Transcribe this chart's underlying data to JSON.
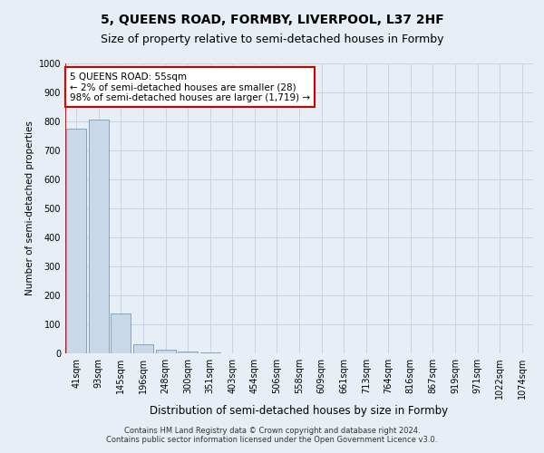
{
  "title": "5, QUEENS ROAD, FORMBY, LIVERPOOL, L37 2HF",
  "subtitle": "Size of property relative to semi-detached houses in Formby",
  "xlabel": "Distribution of semi-detached houses by size in Formby",
  "ylabel": "Number of semi-detached properties",
  "categories": [
    "41sqm",
    "93sqm",
    "145sqm",
    "196sqm",
    "248sqm",
    "300sqm",
    "351sqm",
    "403sqm",
    "454sqm",
    "506sqm",
    "558sqm",
    "609sqm",
    "661sqm",
    "713sqm",
    "764sqm",
    "816sqm",
    "867sqm",
    "919sqm",
    "971sqm",
    "1022sqm",
    "1074sqm"
  ],
  "values": [
    775,
    805,
    138,
    30,
    11,
    7,
    3,
    0,
    0,
    0,
    0,
    0,
    0,
    0,
    0,
    0,
    0,
    0,
    0,
    0,
    0
  ],
  "bar_color": "#c8d8e8",
  "bar_edge_color": "#7799bb",
  "annotation_box_color": "#ffffff",
  "annotation_box_edge_color": "#cc0000",
  "annotation_text": "5 QUEENS ROAD: 55sqm\n← 2% of semi-detached houses are smaller (28)\n98% of semi-detached houses are larger (1,719) →",
  "annotation_fontsize": 7.5,
  "ylim": [
    0,
    1000
  ],
  "yticks": [
    0,
    100,
    200,
    300,
    400,
    500,
    600,
    700,
    800,
    900,
    1000
  ],
  "grid_color": "#c8d4e4",
  "background_color": "#e8eef6",
  "plot_background_color": "#e8eef6",
  "title_fontsize": 10,
  "subtitle_fontsize": 9,
  "xlabel_fontsize": 8.5,
  "ylabel_fontsize": 7.5,
  "tick_fontsize": 7,
  "footer_text": "Contains HM Land Registry data © Crown copyright and database right 2024.\nContains public sector information licensed under the Open Government Licence v3.0.",
  "footer_fontsize": 6,
  "red_line_x": -0.5
}
